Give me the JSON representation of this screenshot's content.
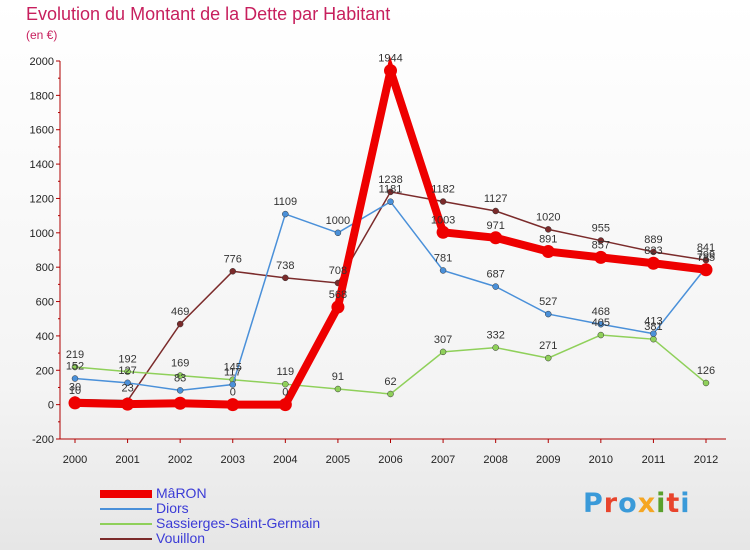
{
  "header": {
    "title": "Evolution du Montant de la Dette par Habitant",
    "subtitle": "(en €)"
  },
  "logo": {
    "text": "Proxiti",
    "colors": [
      "#3a9ad9",
      "#e8442c",
      "#3a9ad9",
      "#f5a623",
      "#5aa02c",
      "#e8442c",
      "#3a9ad9"
    ]
  },
  "chart_data": {
    "type": "line",
    "x": [
      "2000",
      "2001",
      "2002",
      "2003",
      "2004",
      "2005",
      "2006",
      "2007",
      "2008",
      "2009",
      "2010",
      "2011",
      "2012"
    ],
    "ylim": [
      -200,
      2000
    ],
    "yticks": [
      "-200",
      "0",
      "200",
      "400",
      "600",
      "800",
      "1000",
      "1200",
      "1400",
      "1600",
      "1800",
      "2000"
    ],
    "grid": false,
    "legend_position": "bottom-left",
    "series": [
      {
        "name": "Vouillon",
        "color": "#7b2b2b",
        "values": [
          30,
          23,
          469,
          776,
          738,
          708,
          1238,
          1182,
          1127,
          1020,
          955,
          889,
          841
        ],
        "labels": [
          "30",
          "23",
          "469",
          "776",
          "738",
          "708",
          "1238",
          "1182",
          "1127",
          "1020",
          "955",
          "889",
          "841"
        ]
      },
      {
        "name": "Sassierges-Saint-Germain",
        "color": "#8fd05a",
        "values": [
          219,
          192,
          169,
          145,
          119,
          91,
          62,
          307,
          332,
          271,
          405,
          381,
          126
        ],
        "labels": [
          "219",
          "192",
          "169",
          "145",
          "119",
          "91",
          "62",
          "307",
          "332",
          "271",
          "405",
          "381",
          "126"
        ]
      },
      {
        "name": "Diors",
        "color": "#4a90d9",
        "values": [
          152,
          127,
          83,
          117,
          1109,
          1000,
          1181,
          781,
          687,
          527,
          468,
          413,
          799
        ],
        "labels": [
          "152",
          "127",
          "83",
          "117",
          "1109",
          "1000",
          "1181",
          "781",
          "687",
          "527",
          "468",
          "413",
          "799"
        ]
      },
      {
        "name": "MâRON",
        "color": "#ee0000",
        "values": [
          10,
          3,
          8,
          0,
          0,
          568,
          1944,
          1003,
          971,
          891,
          857,
          823,
          785
        ],
        "labels": [
          "10",
          "",
          "",
          "0",
          "0",
          "568",
          "1944",
          "1003",
          "971",
          "891",
          "857",
          "823",
          "785"
        ]
      }
    ]
  },
  "legend": [
    {
      "label": "MâRON",
      "color": "#ee0000",
      "thickness": 8
    },
    {
      "label": "Diors",
      "color": "#4a90d9",
      "thickness": 2
    },
    {
      "label": "Sassierges-Saint-Germain",
      "color": "#8fd05a",
      "thickness": 2
    },
    {
      "label": "Vouillon",
      "color": "#7b2b2b",
      "thickness": 2
    }
  ]
}
